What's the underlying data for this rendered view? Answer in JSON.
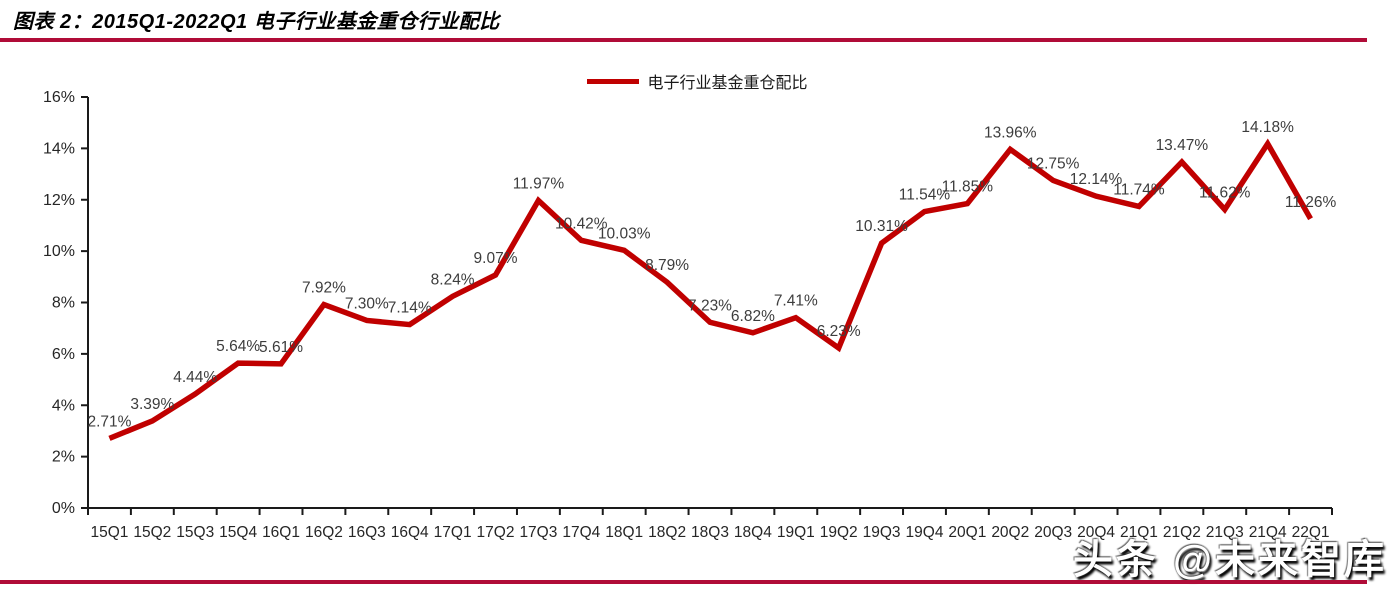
{
  "header": {
    "title": "图表 2：2015Q1-2022Q1 电子行业基金重仓行业配比"
  },
  "legend": {
    "label": "电子行业基金重仓配比"
  },
  "watermark": {
    "text": "头条 @未来智库"
  },
  "colors": {
    "line": "#C00000",
    "accent_rule": "#B00C38",
    "axis": "#1A1A1A",
    "tick_label": "#262626",
    "data_label": "#3D3D3D"
  },
  "chart_data": {
    "type": "line",
    "title": "图表 2：2015Q1-2022Q1 电子行业基金重仓行业配比",
    "legend_entries": [
      "电子行业基金重仓配比"
    ],
    "legend_position": "top-center",
    "grid": false,
    "xlabel": "",
    "ylabel": "",
    "ylim": [
      0,
      16
    ],
    "ytick_step": 2,
    "ytick_labels": [
      "0%",
      "2%",
      "4%",
      "6%",
      "8%",
      "10%",
      "12%",
      "14%",
      "16%"
    ],
    "categories": [
      "15Q1",
      "15Q2",
      "15Q3",
      "15Q4",
      "16Q1",
      "16Q2",
      "16Q3",
      "16Q4",
      "17Q1",
      "17Q2",
      "17Q3",
      "17Q4",
      "18Q1",
      "18Q2",
      "18Q3",
      "18Q4",
      "19Q1",
      "19Q2",
      "19Q3",
      "19Q4",
      "20Q1",
      "20Q2",
      "20Q3",
      "20Q4",
      "21Q1",
      "21Q2",
      "21Q3",
      "21Q4",
      "22Q1"
    ],
    "series": [
      {
        "name": "电子行业基金重仓配比",
        "values": [
          2.71,
          3.39,
          4.44,
          5.64,
          5.61,
          7.92,
          7.3,
          7.14,
          8.24,
          9.07,
          11.97,
          10.42,
          10.03,
          8.79,
          7.23,
          6.82,
          7.41,
          6.23,
          10.31,
          11.54,
          11.85,
          13.96,
          12.75,
          12.14,
          11.74,
          13.47,
          11.62,
          14.18,
          11.26
        ]
      }
    ],
    "data_labels": [
      "2.71%",
      "3.39%",
      "4.44%",
      "5.64%",
      "5.61%",
      "7.92%",
      "7.30%",
      "7.14%",
      "8.24%",
      "9.07%",
      "11.97%",
      "10.42%",
      "10.03%",
      "8.79%",
      "7.23%",
      "6.82%",
      "7.41%",
      "6.23%",
      "10.31%",
      "11.54%",
      "11.85%",
      "13.96%",
      "12.75%",
      "12.14%",
      "11.74%",
      "13.47%",
      "11.62%",
      "14.18%",
      "11.26%"
    ]
  }
}
